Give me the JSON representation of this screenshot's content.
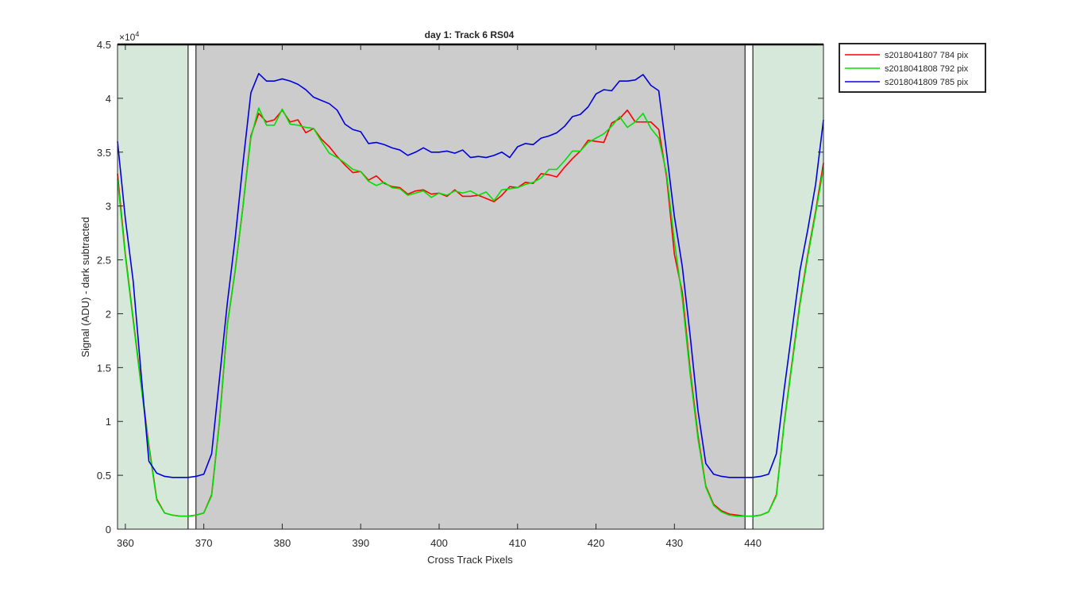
{
  "chart_data": {
    "type": "line",
    "title": "day 1: Track 6  RS04",
    "xlabel": "Cross Track Pixels",
    "ylabel": "Signal (ADU) - dark subtracted",
    "y_exponent_label": "×10",
    "y_exponent_power": "4",
    "xlim": [
      359,
      449
    ],
    "ylim": [
      0,
      45000
    ],
    "xticks": [
      360,
      370,
      380,
      390,
      400,
      410,
      420,
      430,
      440
    ],
    "yticks": [
      0,
      5000,
      10000,
      15000,
      20000,
      25000,
      30000,
      35000,
      40000,
      45000
    ],
    "ytick_labels": [
      "0",
      "0.5",
      "1",
      "1.5",
      "2",
      "2.5",
      "3",
      "3.5",
      "4",
      "4.5"
    ],
    "grid": false,
    "legend_position": "outside-top-right",
    "shaded_regions": [
      {
        "x0": 359,
        "x1": 368,
        "color": "#d5e8d9"
      },
      {
        "x0": 369,
        "x1": 439,
        "color": "#cccccc"
      },
      {
        "x0": 440,
        "x1": 449,
        "color": "#d5e8d9"
      }
    ],
    "marker_boxes": [
      {
        "x0": 368,
        "x1": 369
      },
      {
        "x0": 439,
        "x1": 440
      }
    ],
    "x": [
      359,
      360,
      361,
      362,
      363,
      364,
      365,
      366,
      367,
      368,
      369,
      370,
      371,
      372,
      373,
      374,
      375,
      376,
      377,
      378,
      379,
      380,
      381,
      382,
      383,
      384,
      385,
      386,
      387,
      388,
      389,
      390,
      391,
      392,
      393,
      394,
      395,
      396,
      397,
      398,
      399,
      400,
      401,
      402,
      403,
      404,
      405,
      406,
      407,
      408,
      409,
      410,
      411,
      412,
      413,
      414,
      415,
      416,
      417,
      418,
      419,
      420,
      421,
      422,
      423,
      424,
      425,
      426,
      427,
      428,
      429,
      430,
      431,
      432,
      433,
      434,
      435,
      436,
      437,
      438,
      439,
      440,
      441,
      442,
      443,
      444,
      445,
      446,
      447,
      448,
      449
    ],
    "series": [
      {
        "name": "s2018041807 784 pix",
        "color": "#ff0000",
        "values": [
          33000,
          25500,
          19500,
          13500,
          7800,
          2800,
          1500,
          1300,
          1200,
          1200,
          1300,
          1500,
          3200,
          10000,
          19000,
          24000,
          30000,
          36500,
          38600,
          37800,
          38000,
          38900,
          37800,
          38000,
          36800,
          37200,
          36200,
          35500,
          34600,
          33800,
          33100,
          33200,
          32400,
          32800,
          32100,
          31800,
          31700,
          31100,
          31400,
          31500,
          31100,
          31200,
          30900,
          31500,
          30900,
          30900,
          31000,
          30700,
          30400,
          31000,
          31800,
          31700,
          32200,
          32100,
          33000,
          32900,
          32700,
          33600,
          34400,
          35100,
          36100,
          36000,
          35900,
          37700,
          38100,
          38900,
          37800,
          37800,
          37800,
          37100,
          32700,
          25500,
          22000,
          14800,
          8700,
          4000,
          2300,
          1700,
          1400,
          1300,
          1200,
          1200,
          1300,
          1600,
          3200,
          9900,
          15500,
          21000,
          25500,
          29500,
          34000
        ]
      },
      {
        "name": "s2018041808 792 pix",
        "color": "#00e000",
        "values": [
          32500,
          25300,
          19300,
          13300,
          7600,
          2700,
          1500,
          1300,
          1200,
          1200,
          1300,
          1500,
          3100,
          9900,
          18900,
          24000,
          30000,
          36300,
          39100,
          37500,
          37500,
          39000,
          37600,
          37500,
          37300,
          37200,
          36000,
          34900,
          34500,
          34000,
          33400,
          33200,
          32300,
          31900,
          32200,
          31700,
          31600,
          31000,
          31200,
          31400,
          30800,
          31200,
          31000,
          31400,
          31200,
          31400,
          31000,
          31300,
          30500,
          31500,
          31600,
          31700,
          32000,
          32200,
          32600,
          33400,
          33400,
          34200,
          35100,
          35100,
          35900,
          36300,
          36700,
          37400,
          38300,
          37300,
          37800,
          38600,
          37200,
          36300,
          33000,
          26700,
          21400,
          14400,
          8400,
          3900,
          2200,
          1600,
          1300,
          1200,
          1200,
          1200,
          1300,
          1600,
          3100,
          9800,
          15300,
          20800,
          25300,
          29300,
          33500
        ]
      },
      {
        "name": "s2018041809 785 pix",
        "color": "#0000dd",
        "values": [
          36000,
          28800,
          23000,
          14500,
          6300,
          5200,
          4900,
          4800,
          4800,
          4800,
          4900,
          5100,
          7000,
          14000,
          21000,
          27000,
          34000,
          40500,
          42300,
          41600,
          41600,
          41800,
          41600,
          41300,
          40800,
          40100,
          39800,
          39500,
          38900,
          37600,
          37100,
          36900,
          35800,
          35900,
          35700,
          35400,
          35200,
          34700,
          35000,
          35400,
          35000,
          35000,
          35100,
          34900,
          35200,
          34500,
          34600,
          34500,
          34700,
          35000,
          34500,
          35500,
          35800,
          35700,
          36300,
          36500,
          36800,
          37400,
          38300,
          38500,
          39200,
          40400,
          40800,
          40700,
          41600,
          41600,
          41700,
          42200,
          41200,
          40700,
          35000,
          29000,
          24400,
          18000,
          11000,
          6100,
          5100,
          4900,
          4800,
          4800,
          4800,
          4800,
          4900,
          5100,
          7000,
          13000,
          18500,
          24000,
          27800,
          32000,
          38000
        ]
      }
    ]
  }
}
